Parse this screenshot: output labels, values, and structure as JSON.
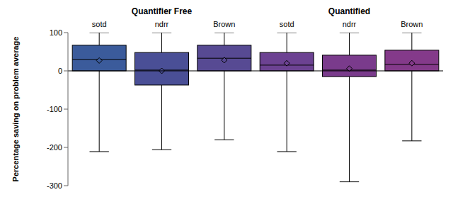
{
  "chart_data": {
    "type": "box",
    "y_label": "Percentage saving on problem average",
    "categories": [
      "sotd",
      "ndrr",
      "Brown",
      "sotd",
      "ndrr",
      "Brown"
    ],
    "groups": [
      "Quantifier Free",
      "Quantifier Free",
      "Quantifier Free",
      "Quantified",
      "Quantified",
      "Quantified"
    ],
    "boxes": [
      {
        "min": -211,
        "q1": 0,
        "median": 30,
        "q3": 67,
        "max": 100,
        "mean": 27
      },
      {
        "min": -206,
        "q1": -37,
        "median": 2,
        "q3": 48,
        "max": 100,
        "mean": 0
      },
      {
        "min": -180,
        "q1": 0,
        "median": 33,
        "q3": 67,
        "max": 100,
        "mean": 28
      },
      {
        "min": -211,
        "q1": 0,
        "median": 15,
        "q3": 48,
        "max": 100,
        "mean": 20
      },
      {
        "min": -290,
        "q1": -15,
        "median": 2,
        "q3": 41,
        "max": 100,
        "mean": 6
      },
      {
        "min": -183,
        "q1": 0,
        "median": 17,
        "q3": 54,
        "max": 100,
        "mean": 20
      }
    ],
    "colors": [
      "#3b5b9b",
      "#4a4f96",
      "#574a93",
      "#6c4292",
      "#7a3b8c",
      "#843a8a"
    ],
    "ylim": [
      -300,
      100
    ],
    "yticks": [
      100,
      0,
      -100,
      -200,
      -300
    ],
    "baseline": 0,
    "marker": "diamond",
    "grid": false
  }
}
